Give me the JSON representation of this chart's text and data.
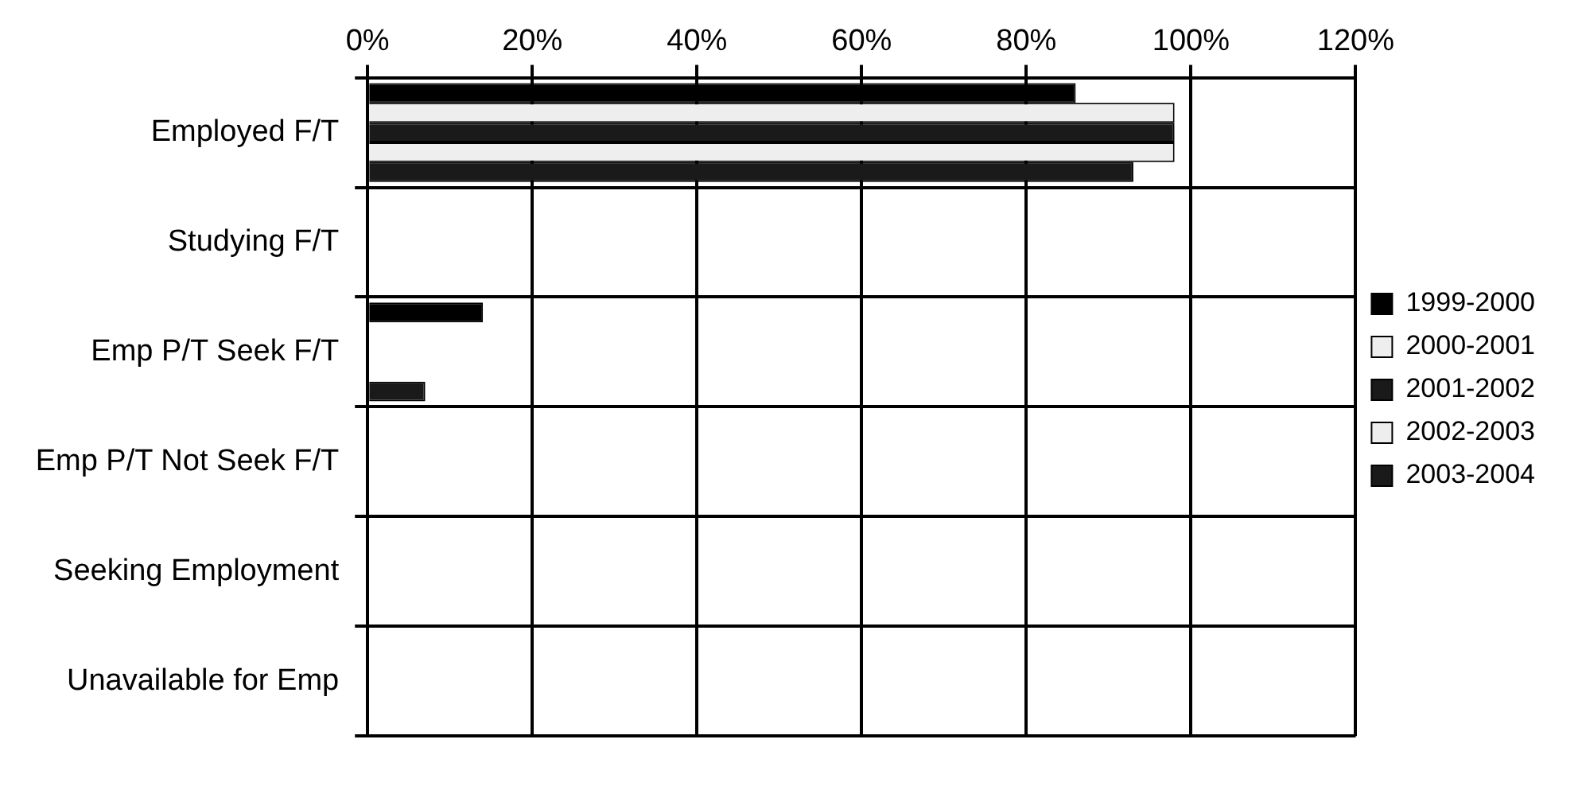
{
  "chart_data": {
    "type": "bar",
    "orientation": "horizontal",
    "categories": [
      "Employed F/T",
      "Studying F/T",
      "Emp P/T Seek F/T",
      "Emp P/T Not Seek F/T",
      "Seeking Employment",
      "Unavailable for Emp"
    ],
    "series": [
      {
        "name": "1999-2000",
        "color": "#000000",
        "values": [
          86,
          0,
          14,
          0,
          0,
          0
        ]
      },
      {
        "name": "2000-2001",
        "color": "#eeeeee",
        "values": [
          98,
          0,
          0,
          0,
          0,
          0
        ]
      },
      {
        "name": "2001-2002",
        "color": "#1a1a1a",
        "values": [
          98,
          0,
          0,
          0,
          0,
          0
        ]
      },
      {
        "name": "2002-2003",
        "color": "#eeeeee",
        "values": [
          98,
          0,
          0,
          0,
          0,
          0
        ]
      },
      {
        "name": "2003-2004",
        "color": "#1a1a1a",
        "values": [
          93,
          0,
          7,
          0,
          0,
          0
        ]
      }
    ],
    "xlim": [
      0,
      120
    ],
    "xticks": [
      {
        "value": 0,
        "label": "0%"
      },
      {
        "value": 20,
        "label": "20%"
      },
      {
        "value": 40,
        "label": "40%"
      },
      {
        "value": 60,
        "label": "60%"
      },
      {
        "value": 80,
        "label": "80%"
      },
      {
        "value": 100,
        "label": "100%"
      },
      {
        "value": 120,
        "label": "120%"
      }
    ],
    "grid": true,
    "legend": "right"
  }
}
